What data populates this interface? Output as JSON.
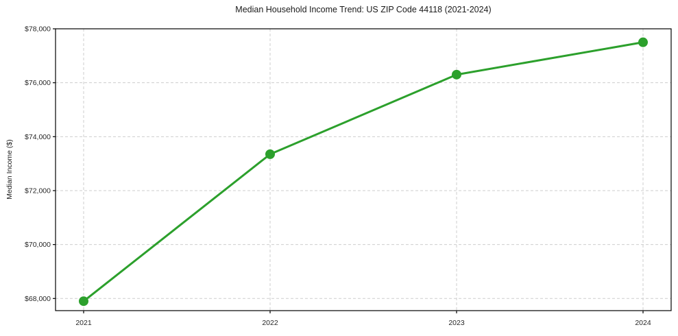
{
  "chart_data": {
    "type": "line",
    "title": "Median Household Income Trend: US ZIP Code 44118 (2021-2024)",
    "xlabel": "",
    "ylabel": "Median Income ($)",
    "categories": [
      "2021",
      "2022",
      "2023",
      "2024"
    ],
    "series": [
      {
        "name": "Median Household Income",
        "values": [
          67900,
          73350,
          76300,
          77500
        ],
        "color": "#2ca02c",
        "marker": "circle"
      }
    ],
    "y_ticks": [
      {
        "value": 68000,
        "label": "$68,000"
      },
      {
        "value": 70000,
        "label": "$70,000"
      },
      {
        "value": 72000,
        "label": "$72,000"
      },
      {
        "value": 74000,
        "label": "$74,000"
      },
      {
        "value": 76000,
        "label": "$76,000"
      },
      {
        "value": 78000,
        "label": "$78,000"
      }
    ],
    "ylim": [
      67550,
      78000
    ],
    "grid": {
      "visible": true,
      "style": "dashed",
      "color": "#cdcdcd"
    },
    "legend_position": "none",
    "spine_color": "#000000",
    "background_color": "#ffffff"
  }
}
